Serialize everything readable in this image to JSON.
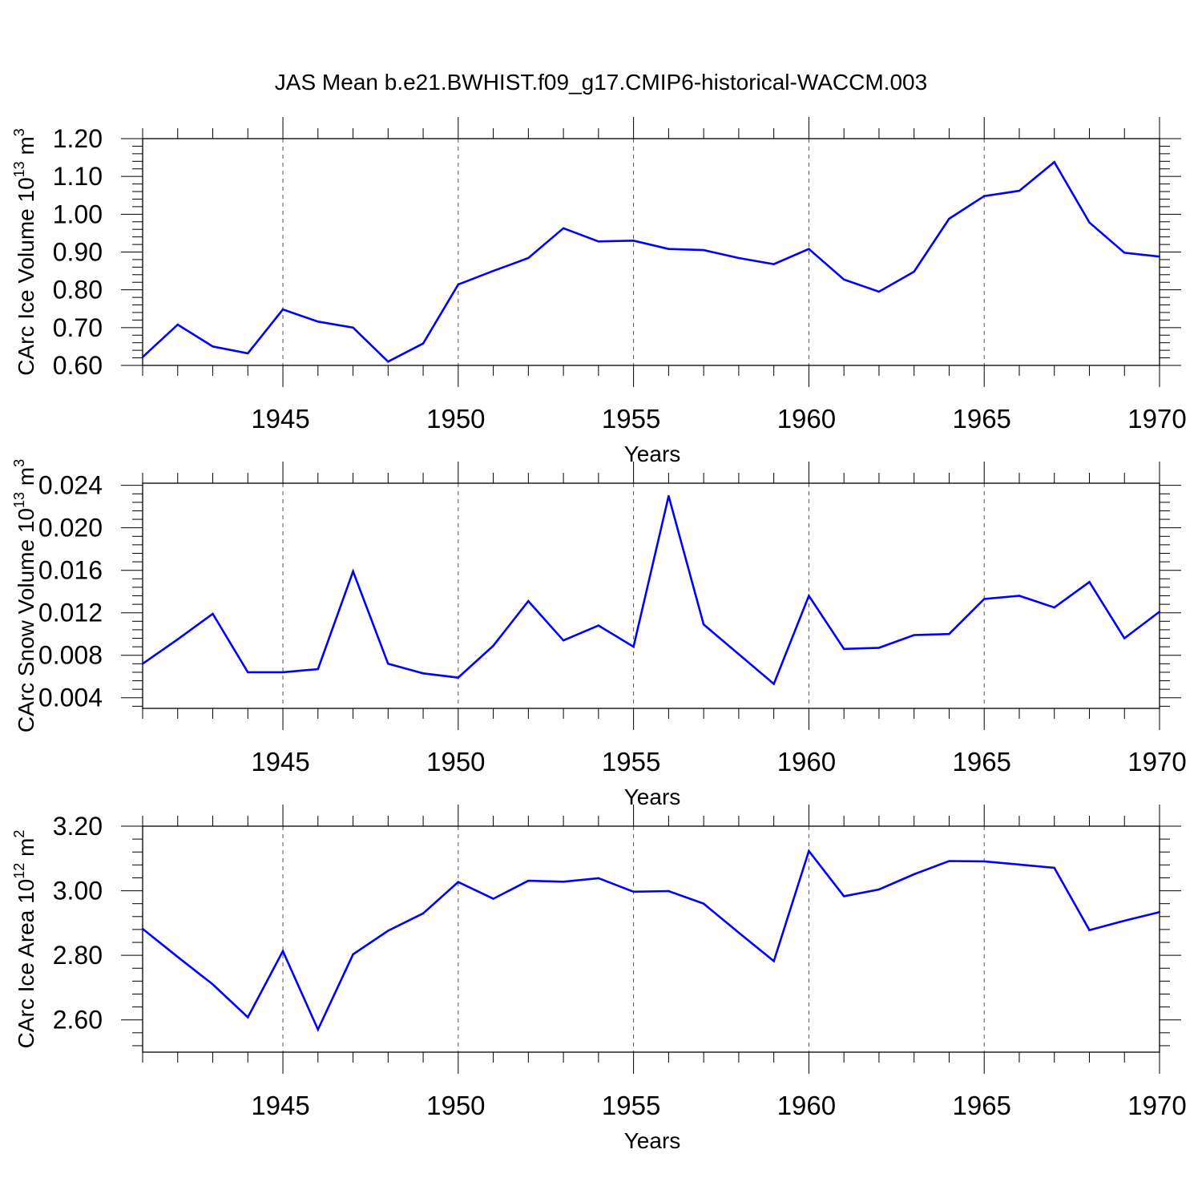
{
  "title": "JAS Mean b.e21.BWHIST.f09_g17.CMIP6-historical-WACCM.003",
  "colors": {
    "line": "#0000ff",
    "axis": "#000000",
    "grid": "#555555"
  },
  "chart_data": [
    {
      "type": "line",
      "ylabel": "CArc Ice Volume 10",
      "ylabel_exp": "13",
      "ylabel_unit": " m",
      "ylabel_unit_exp": "3",
      "xlabel": "Years",
      "xlim": [
        1941,
        1970
      ],
      "ylim": [
        0.6,
        1.2
      ],
      "yticks": [
        0.6,
        0.7,
        0.8,
        0.9,
        1.0,
        1.1,
        1.2
      ],
      "ytick_labels": [
        "0.60",
        "0.70",
        "0.80",
        "0.90",
        "1.00",
        "1.10",
        "1.20"
      ],
      "yminor_step": 0.02,
      "xticks": [
        1945,
        1950,
        1955,
        1960,
        1965,
        1970
      ],
      "xtick_labels": [
        "1945",
        "1950",
        "1955",
        "1960",
        "1965",
        "1970"
      ],
      "grid_x": [
        1945,
        1950,
        1955,
        1960,
        1965
      ],
      "x": [
        1941,
        1942,
        1943,
        1944,
        1945,
        1946,
        1947,
        1948,
        1949,
        1950,
        1951,
        1952,
        1953,
        1954,
        1955,
        1956,
        1957,
        1958,
        1959,
        1960,
        1961,
        1962,
        1963,
        1964,
        1965,
        1966,
        1967,
        1968,
        1969,
        1970
      ],
      "values": [
        0.622,
        0.708,
        0.65,
        0.632,
        0.748,
        0.716,
        0.7,
        0.61,
        0.658,
        0.814,
        0.85,
        0.884,
        0.963,
        0.928,
        0.93,
        0.908,
        0.905,
        0.884,
        0.868,
        0.908,
        0.827,
        0.795,
        0.848,
        0.988,
        1.048,
        1.062,
        1.138,
        0.978,
        0.898,
        0.888
      ]
    },
    {
      "type": "line",
      "ylabel": "CArc Snow Volume 10",
      "ylabel_exp": "13",
      "ylabel_unit": " m",
      "ylabel_unit_exp": "3",
      "xlabel": "Years",
      "xlim": [
        1941,
        1970
      ],
      "ylim": [
        0.003,
        0.0242
      ],
      "yticks": [
        0.004,
        0.008,
        0.012,
        0.016,
        0.02,
        0.024
      ],
      "ytick_labels": [
        "0.004",
        "0.008",
        "0.012",
        "0.016",
        "0.020",
        "0.024"
      ],
      "yminor_step": 0.0008,
      "xticks": [
        1945,
        1950,
        1955,
        1960,
        1965,
        1970
      ],
      "xtick_labels": [
        "1945",
        "1950",
        "1955",
        "1960",
        "1965",
        "1970"
      ],
      "grid_x": [
        1945,
        1950,
        1955,
        1960,
        1965
      ],
      "x": [
        1941,
        1942,
        1943,
        1944,
        1945,
        1946,
        1947,
        1948,
        1949,
        1950,
        1951,
        1952,
        1953,
        1954,
        1955,
        1956,
        1957,
        1958,
        1959,
        1960,
        1961,
        1962,
        1963,
        1964,
        1965,
        1966,
        1967,
        1968,
        1969,
        1970
      ],
      "values": [
        0.0072,
        0.0095,
        0.0119,
        0.0064,
        0.0064,
        0.0067,
        0.0159,
        0.0072,
        0.0063,
        0.0059,
        0.0089,
        0.0131,
        0.0094,
        0.0108,
        0.0088,
        0.023,
        0.0109,
        0.0081,
        0.0053,
        0.0136,
        0.0086,
        0.0087,
        0.0099,
        0.01,
        0.0133,
        0.0136,
        0.0125,
        0.0149,
        0.0096,
        0.0121
      ]
    },
    {
      "type": "line",
      "ylabel": "CArc Ice Area 10",
      "ylabel_exp": "12",
      "ylabel_unit": " m",
      "ylabel_unit_exp": "2",
      "xlabel": "Years",
      "xlim": [
        1941,
        1970
      ],
      "ylim": [
        2.5,
        3.2
      ],
      "yticks": [
        2.6,
        2.8,
        3.0,
        3.2
      ],
      "ytick_labels": [
        "2.60",
        "2.80",
        "3.00",
        "3.20"
      ],
      "yminor_step": 0.04,
      "xticks": [
        1945,
        1950,
        1955,
        1960,
        1965,
        1970
      ],
      "xtick_labels": [
        "1945",
        "1950",
        "1955",
        "1960",
        "1965",
        "1970"
      ],
      "grid_x": [
        1945,
        1950,
        1955,
        1960,
        1965
      ],
      "x": [
        1941,
        1942,
        1943,
        1944,
        1945,
        1946,
        1947,
        1948,
        1949,
        1950,
        1951,
        1952,
        1953,
        1954,
        1955,
        1956,
        1957,
        1958,
        1959,
        1960,
        1961,
        1962,
        1963,
        1964,
        1965,
        1966,
        1967,
        1968,
        1969,
        1970
      ],
      "values": [
        2.882,
        2.795,
        2.71,
        2.608,
        2.813,
        2.57,
        2.803,
        2.876,
        2.93,
        3.027,
        2.975,
        3.031,
        3.028,
        3.039,
        2.997,
        2.999,
        2.96,
        2.87,
        2.782,
        3.123,
        2.983,
        3.004,
        3.051,
        3.092,
        3.091,
        3.081,
        3.071,
        2.878,
        2.907,
        2.934
      ]
    }
  ]
}
